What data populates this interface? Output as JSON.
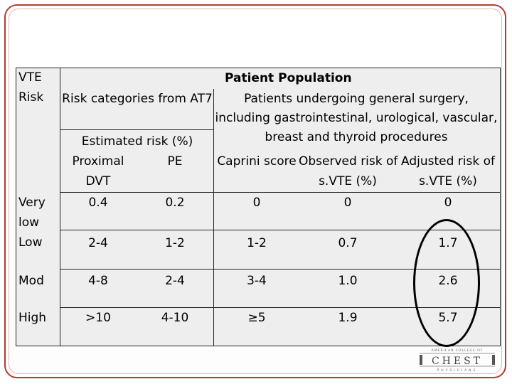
{
  "header": {
    "vte": "VTE",
    "risk": "Risk",
    "patient_population": "Patient Population",
    "risk_categories": "Risk categories from AT7",
    "patients_desc": "Patients undergoing general surgery, including gastrointestinal, urological, vascular, breast and thyroid procedures",
    "estimated_risk": "Estimated risk (%)",
    "proximal": "Proximal",
    "dvt": "DVT",
    "pe": "PE",
    "caprini": "Caprini score",
    "observed_a": "Observed risk of",
    "observed_b": "s.VTE (%)",
    "adjusted_a": "Adjusted risk of",
    "adjusted_b": "s.VTE (%)"
  },
  "rows": [
    {
      "risk_a": "Very",
      "risk_b": "low",
      "dvt": "0.4",
      "pe": "0.2",
      "caprini": "0",
      "observed": "0",
      "adjusted": "0"
    },
    {
      "risk": "Low",
      "dvt": "2-4",
      "pe": "1-2",
      "caprini": "1-2",
      "observed": "0.7",
      "adjusted": "1.7"
    },
    {
      "risk": "Mod",
      "dvt": "4-8",
      "pe": "2-4",
      "caprini": "3-4",
      "observed": "1.0",
      "adjusted": "2.6"
    },
    {
      "risk": "High",
      "dvt": ">10",
      "pe": "4-10",
      "caprini": "≥5",
      "observed": "1.9",
      "adjusted": "5.7"
    }
  ],
  "logo": {
    "top_text": "AMERICAN COLLEGE OF",
    "main_text": "CHEST",
    "bottom_text": "PHYSICIANS"
  }
}
